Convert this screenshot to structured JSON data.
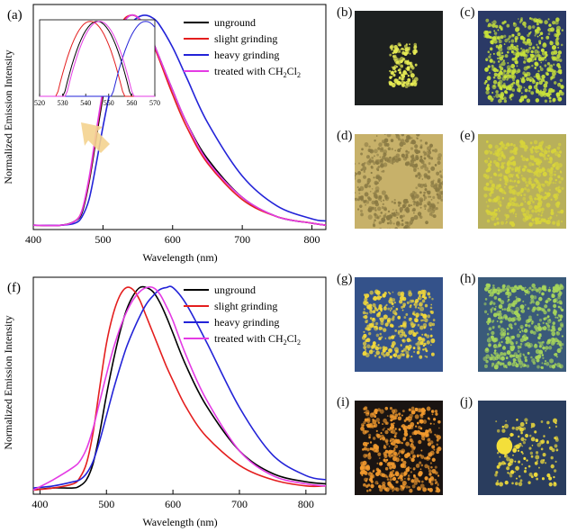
{
  "panels": {
    "a": "(a)",
    "b": "(b)",
    "c": "(c)",
    "d": "(d)",
    "e": "(e)",
    "f": "(f)",
    "g": "(g)",
    "h": "(h)",
    "i": "(i)",
    "j": "(j)"
  },
  "photos": [
    {
      "id": "b",
      "bg": "#1d2020",
      "fg": "#e9ee55",
      "style": "blob"
    },
    {
      "id": "c",
      "bg": "#2b3a66",
      "fg": "#c8e23a",
      "style": "pile"
    },
    {
      "id": "d",
      "bg": "#c7b16a",
      "fg": "#8a7a44",
      "style": "ring"
    },
    {
      "id": "e",
      "bg": "#b8b05a",
      "fg": "#d8d43a",
      "style": "swirl"
    },
    {
      "id": "g",
      "bg": "#34528a",
      "fg": "#f3d93a",
      "style": "scatter"
    },
    {
      "id": "h",
      "bg": "#3a5a7a",
      "fg": "#a7d65a",
      "style": "swirl"
    },
    {
      "id": "i",
      "bg": "#1a1412",
      "fg": "#f29a2e",
      "style": "pile"
    },
    {
      "id": "j",
      "bg": "#2a3d5e",
      "fg": "#f4df3a",
      "style": "spot"
    }
  ],
  "chart_data": [
    {
      "type": "line",
      "xlabel": "Wavelength (nm)",
      "ylabel": "Normalized Emission Intensity",
      "xlim": [
        400,
        820
      ],
      "ylim": [
        0,
        1.05
      ],
      "xticks": [
        400,
        500,
        600,
        700,
        800
      ],
      "legend_position": "top-right",
      "series": [
        {
          "name": "unground",
          "color": "#000000",
          "x": [
            400,
            440,
            460,
            470,
            480,
            490,
            500,
            510,
            520,
            530,
            540,
            550,
            560,
            570,
            580,
            600,
            620,
            650,
            700,
            750,
            800,
            820
          ],
          "y": [
            0.02,
            0.02,
            0.04,
            0.08,
            0.22,
            0.42,
            0.62,
            0.78,
            0.9,
            0.97,
            1.0,
            0.99,
            0.95,
            0.89,
            0.81,
            0.65,
            0.5,
            0.33,
            0.15,
            0.06,
            0.03,
            0.02
          ]
        },
        {
          "name": "slight grinding",
          "color": "#e41e1e",
          "x": [
            400,
            440,
            460,
            470,
            480,
            490,
            500,
            510,
            520,
            530,
            540,
            550,
            560,
            570,
            580,
            600,
            620,
            650,
            700,
            750,
            800,
            820
          ],
          "y": [
            0.02,
            0.02,
            0.04,
            0.09,
            0.23,
            0.44,
            0.64,
            0.8,
            0.91,
            0.98,
            1.0,
            0.99,
            0.94,
            0.88,
            0.8,
            0.63,
            0.48,
            0.31,
            0.14,
            0.06,
            0.03,
            0.02
          ]
        },
        {
          "name": "heavy grinding",
          "color": "#2323d8",
          "x": [
            400,
            440,
            460,
            470,
            480,
            490,
            500,
            510,
            520,
            530,
            540,
            550,
            560,
            570,
            580,
            600,
            620,
            650,
            700,
            750,
            800,
            820
          ],
          "y": [
            0.02,
            0.02,
            0.03,
            0.06,
            0.14,
            0.3,
            0.48,
            0.64,
            0.78,
            0.89,
            0.96,
            0.99,
            1.0,
            0.99,
            0.96,
            0.85,
            0.71,
            0.5,
            0.25,
            0.11,
            0.05,
            0.04
          ]
        },
        {
          "name": "treated with CH2Cl2",
          "color": "#e43be4",
          "x": [
            400,
            440,
            460,
            470,
            480,
            490,
            500,
            510,
            520,
            530,
            540,
            550,
            560,
            570,
            580,
            600,
            620,
            650,
            700,
            750,
            800,
            820
          ],
          "y": [
            0.02,
            0.02,
            0.04,
            0.09,
            0.24,
            0.45,
            0.65,
            0.8,
            0.91,
            0.97,
            1.0,
            0.99,
            0.95,
            0.89,
            0.81,
            0.65,
            0.5,
            0.32,
            0.15,
            0.06,
            0.03,
            0.02
          ]
        }
      ],
      "inset": {
        "xlim": [
          520,
          570
        ],
        "xticks": [
          520,
          530,
          540,
          550,
          560,
          570
        ],
        "ylim": [
          0.9,
          1.002
        ],
        "note_series_peaks_nm": {
          "unground": 545,
          "slight grinding": 542,
          "heavy grinding": 566,
          "treated with CH2Cl2": 546
        }
      }
    },
    {
      "type": "line",
      "xlabel": "Wavelength (nm)",
      "ylabel": "Normalized Emission Intensity",
      "xlim": [
        390,
        830
      ],
      "ylim": [
        0,
        1.05
      ],
      "xticks": [
        400,
        500,
        600,
        700,
        800
      ],
      "legend_position": "top-right",
      "series": [
        {
          "name": "unground",
          "color": "#000000",
          "x": [
            390,
            420,
            450,
            460,
            470,
            480,
            490,
            500,
            510,
            520,
            530,
            540,
            550,
            560,
            570,
            580,
            590,
            600,
            620,
            650,
            700,
            750,
            800,
            830
          ],
          "y": [
            0.02,
            0.03,
            0.03,
            0.04,
            0.07,
            0.15,
            0.3,
            0.48,
            0.64,
            0.78,
            0.89,
            0.96,
            1.0,
            1.0,
            0.98,
            0.93,
            0.86,
            0.78,
            0.62,
            0.43,
            0.21,
            0.1,
            0.06,
            0.05
          ]
        },
        {
          "name": "slight grinding",
          "color": "#e41e1e",
          "x": [
            390,
            420,
            450,
            460,
            470,
            480,
            490,
            500,
            510,
            520,
            530,
            540,
            550,
            560,
            570,
            580,
            590,
            600,
            620,
            650,
            700,
            750,
            800,
            830
          ],
          "y": [
            0.02,
            0.03,
            0.05,
            0.08,
            0.15,
            0.3,
            0.52,
            0.73,
            0.87,
            0.96,
            1.0,
            0.99,
            0.94,
            0.86,
            0.78,
            0.7,
            0.62,
            0.55,
            0.42,
            0.28,
            0.14,
            0.07,
            0.04,
            0.04
          ]
        },
        {
          "name": "heavy grinding",
          "color": "#2323d8",
          "x": [
            390,
            420,
            450,
            460,
            470,
            480,
            490,
            500,
            510,
            520,
            530,
            540,
            550,
            560,
            570,
            580,
            590,
            600,
            620,
            650,
            700,
            750,
            800,
            830
          ],
          "y": [
            0.03,
            0.04,
            0.06,
            0.07,
            0.1,
            0.16,
            0.26,
            0.38,
            0.5,
            0.61,
            0.71,
            0.79,
            0.86,
            0.92,
            0.96,
            0.99,
            1.0,
            1.0,
            0.92,
            0.74,
            0.42,
            0.19,
            0.09,
            0.07
          ]
        },
        {
          "name": "treated with CH2Cl2",
          "color": "#e43be4",
          "x": [
            390,
            420,
            450,
            460,
            470,
            480,
            490,
            500,
            510,
            520,
            530,
            540,
            550,
            560,
            570,
            580,
            590,
            600,
            620,
            650,
            700,
            750,
            800,
            830
          ],
          "y": [
            0.02,
            0.07,
            0.13,
            0.16,
            0.22,
            0.32,
            0.45,
            0.58,
            0.7,
            0.8,
            0.88,
            0.94,
            0.98,
            1.0,
            1.0,
            0.97,
            0.91,
            0.84,
            0.67,
            0.46,
            0.21,
            0.09,
            0.05,
            0.04
          ]
        }
      ]
    }
  ]
}
